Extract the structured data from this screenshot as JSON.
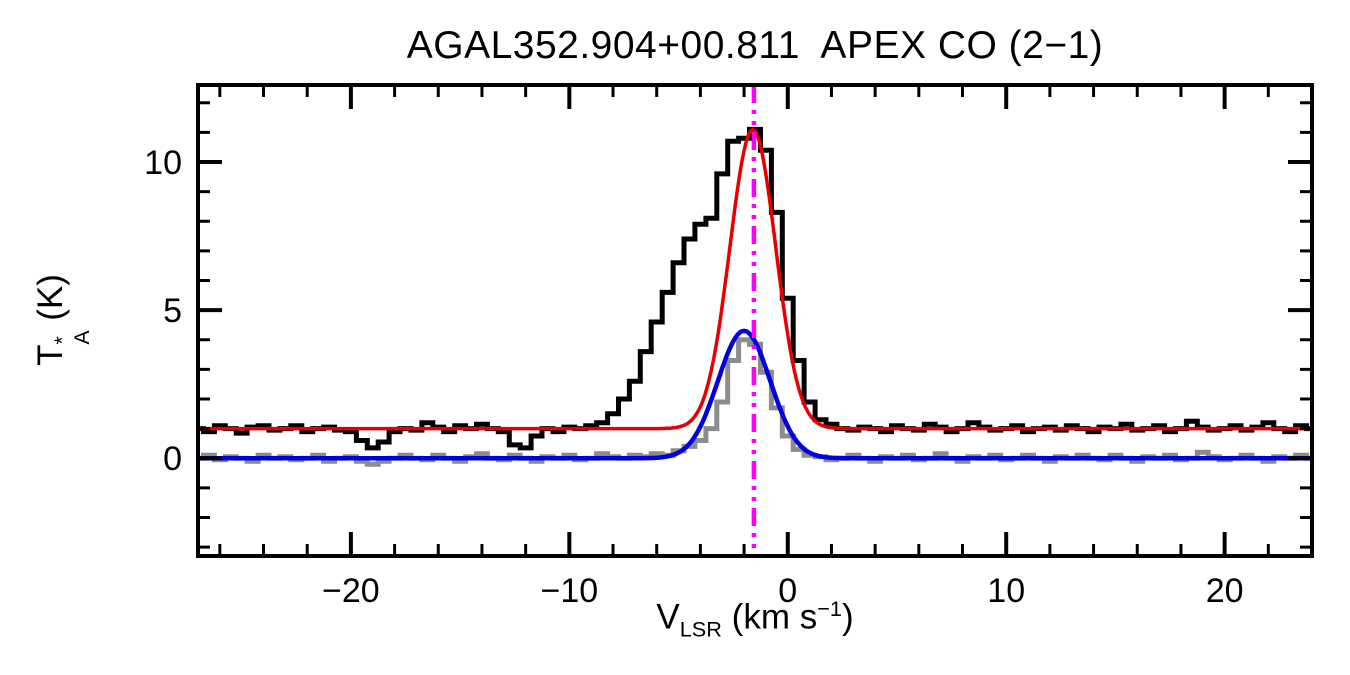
{
  "title": "AGAL352.904+00.811  APEX CO (2−1)",
  "axes": {
    "ylabel": {
      "prefix": "T",
      "sup": "*",
      "sub": "A",
      "suffix": " (K)"
    },
    "xlabel": {
      "prefix": "V",
      "sub": "LSR",
      "mid": " (km s",
      "sup": "−1",
      "suffix": ")"
    }
  },
  "chart_data": {
    "type": "line",
    "title": "AGAL352.904+00.811  APEX CO (2−1)",
    "xlabel": "V_LSR (km s^-1)",
    "ylabel": "T*_A (K)",
    "xlim": [
      -27,
      24
    ],
    "ylim": [
      -3.3,
      12.6
    ],
    "grid": false,
    "legend": "none",
    "x_major_ticks": [
      -20,
      -10,
      0,
      10,
      20
    ],
    "x_tick_labels": [
      "−20",
      "−10",
      "0",
      "10",
      "20"
    ],
    "x_minor_step": 2,
    "y_major_ticks": [
      0,
      5,
      10
    ],
    "y_tick_labels": [
      "0",
      "5",
      "10"
    ],
    "y_minor_step": 1,
    "series": [
      {
        "name": "observed-spectrum",
        "style": "histogram",
        "color": "#000000",
        "linewidth": 5,
        "x_start": -27,
        "dx": 0.5,
        "values": [
          1.0,
          0.9,
          1.1,
          1.0,
          0.85,
          1.05,
          1.1,
          0.95,
          1.0,
          1.1,
          0.9,
          1.0,
          1.05,
          0.95,
          0.9,
          0.6,
          0.35,
          0.55,
          0.9,
          1.0,
          0.95,
          1.2,
          1.05,
          0.9,
          1.1,
          1.0,
          1.15,
          1.0,
          0.9,
          0.45,
          0.35,
          0.75,
          1.0,
          0.9,
          1.05,
          1.0,
          1.1,
          1.2,
          1.5,
          2.0,
          2.6,
          3.6,
          4.6,
          5.6,
          6.6,
          7.4,
          7.9,
          8.1,
          9.6,
          10.7,
          10.8,
          11.1,
          10.4,
          8.3,
          5.4,
          3.3,
          1.9,
          1.3,
          1.15,
          1.0,
          0.95,
          1.05,
          1.0,
          0.9,
          1.1,
          1.0,
          0.95,
          1.15,
          1.05,
          0.9,
          1.0,
          1.2,
          1.05,
          0.95,
          1.0,
          1.1,
          0.9,
          1.0,
          1.05,
          0.95,
          1.1,
          1.0,
          0.9,
          1.05,
          1.0,
          1.15,
          0.95,
          1.0,
          1.1,
          0.9,
          1.0,
          1.25,
          1.05,
          0.95,
          1.0,
          1.1,
          0.95,
          1.05,
          1.2,
          1.0,
          0.9,
          1.1,
          1.0
        ]
      },
      {
        "name": "residual-spectrum",
        "style": "histogram",
        "color": "#8c8c8c",
        "linewidth": 5,
        "x_start": -27,
        "dx": 0.5,
        "values": [
          0.0,
          0.1,
          -0.05,
          0.05,
          0.0,
          -0.1,
          0.1,
          0.0,
          0.05,
          -0.05,
          0.0,
          0.1,
          -0.1,
          0.0,
          0.05,
          -0.1,
          -0.2,
          -0.1,
          0.0,
          0.1,
          0.0,
          -0.05,
          0.1,
          0.0,
          -0.1,
          0.05,
          0.15,
          0.0,
          -0.05,
          0.1,
          0.0,
          -0.1,
          0.05,
          0.0,
          0.1,
          -0.05,
          0.0,
          0.15,
          0.05,
          0.0,
          0.1,
          0.05,
          0.15,
          0.1,
          0.25,
          0.4,
          0.6,
          1.0,
          1.9,
          3.3,
          4.0,
          3.85,
          2.9,
          1.7,
          0.75,
          0.3,
          0.1,
          0.05,
          -0.05,
          0.0,
          0.1,
          0.0,
          -0.1,
          0.05,
          0.0,
          0.1,
          -0.05,
          0.0,
          0.15,
          0.0,
          -0.1,
          0.05,
          0.0,
          0.1,
          -0.05,
          0.0,
          0.1,
          0.0,
          -0.1,
          0.05,
          0.0,
          0.1,
          0.0,
          -0.05,
          0.1,
          0.0,
          -0.1,
          0.05,
          0.0,
          0.1,
          -0.05,
          0.0,
          0.2,
          0.05,
          -0.05,
          0.0,
          0.1,
          0.0,
          -0.1,
          0.05,
          0.0,
          0.1,
          0.0
        ]
      },
      {
        "name": "gaussian-fit-main",
        "style": "gaussian",
        "color": "#e60000",
        "linewidth": 3.5,
        "baseline": 1.0,
        "amplitude": 10.1,
        "center": -1.6,
        "sigma": 1.05
      },
      {
        "name": "gaussian-fit-secondary",
        "style": "gaussian",
        "color": "#0000dd",
        "linewidth": 4.5,
        "baseline": 0.0,
        "amplitude": 4.3,
        "center": -2.0,
        "sigma": 1.2
      }
    ],
    "vline": {
      "x": -1.55,
      "color": "#ff00ff",
      "style": "dash-dot",
      "linewidth": 4.5
    }
  }
}
